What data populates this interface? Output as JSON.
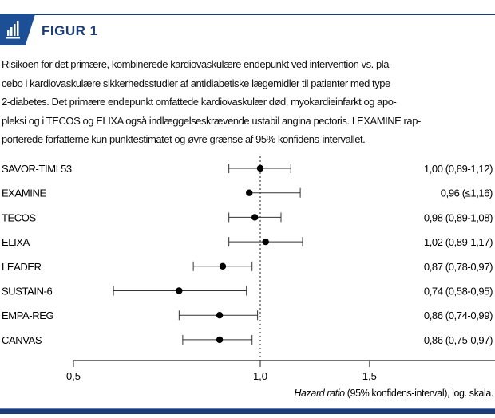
{
  "header": {
    "title": "FIGUR 1",
    "icon": "bar-chart-icon"
  },
  "caption_lines": [
    "Risikoen for det primære, kombinerede kardiovaskulære endepunkt ved intervention vs. pla-",
    "cebo i kardiovaskulære sikkerhedsstudier af antidiabetiske lægemidler til patienter med type",
    "2-diabetes. Det primære endepunkt omfattede kardiovaskulær død, myokardieinfarkt og apo-",
    "pleksi og i TECOS og ELIXA også indlæggelseskrævende ustabil angina pectoris. I EXAMINE rap-",
    "porterede forfatterne kun punktestimatet og øvre grænse af 95% konfidens-intervallet."
  ],
  "colors": {
    "brand": "#1c3d78",
    "badge": "#1c4f96"
  },
  "chart_data": {
    "type": "forest",
    "xscale": "log",
    "xlim": [
      0.5,
      2.0
    ],
    "xticks": [
      {
        "value": 0.5,
        "label": "0,5"
      },
      {
        "value": 1.0,
        "label": "1,0"
      },
      {
        "value": 1.5,
        "label": "1,5"
      }
    ],
    "reference_line": 1.0,
    "xlabel_italic": "Hazard ratio",
    "xlabel_rest": " (95% konfidens-interval), log. skala.",
    "studies": [
      {
        "name": "SAVOR-TIMI 53",
        "hr": 1.0,
        "lo": 0.89,
        "hi": 1.12,
        "label": "1,00 (0,89-1,12)"
      },
      {
        "name": "EXAMINE",
        "hr": 0.96,
        "lo": null,
        "hi": 1.16,
        "label": "0,96 (≤1,16)"
      },
      {
        "name": "TECOS",
        "hr": 0.98,
        "lo": 0.89,
        "hi": 1.08,
        "label": "0,98 (0,89-1,08)"
      },
      {
        "name": "ELIXA",
        "hr": 1.02,
        "lo": 0.89,
        "hi": 1.17,
        "label": "1,02 (0,89-1,17)"
      },
      {
        "name": "LEADER",
        "hr": 0.87,
        "lo": 0.78,
        "hi": 0.97,
        "label": "0,87 (0,78-0,97)"
      },
      {
        "name": "SUSTAIN-6",
        "hr": 0.74,
        "lo": 0.58,
        "hi": 0.95,
        "label": "0,74 (0,58-0,95)"
      },
      {
        "name": "EMPA-REG",
        "hr": 0.86,
        "lo": 0.74,
        "hi": 0.99,
        "label": "0,86 (0,74-0,99)"
      },
      {
        "name": "CANVAS",
        "hr": 0.86,
        "lo": 0.75,
        "hi": 0.97,
        "label": "0,86 (0,75-0,97)"
      }
    ]
  }
}
